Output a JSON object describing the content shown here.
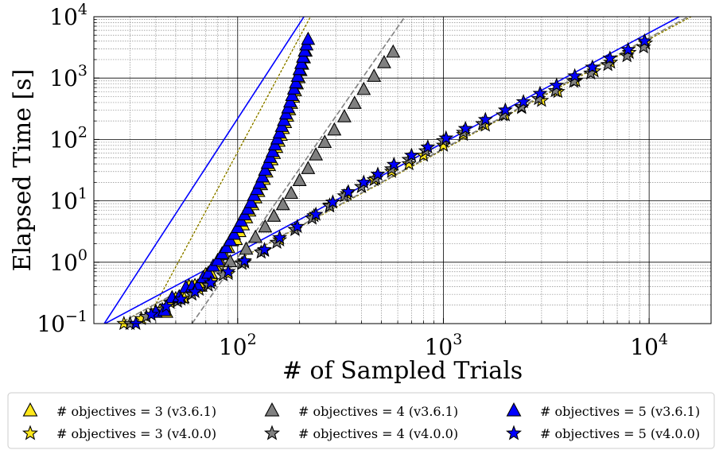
{
  "chart_data": {
    "type": "scatter",
    "xlabel": "# of Sampled Trials",
    "ylabel": "Elapsed Time [s]",
    "x_scale": "log",
    "y_scale": "log",
    "xlim": [
      20,
      20000
    ],
    "ylim": [
      0.1,
      10000
    ],
    "x_ticks": [
      {
        "base": "10",
        "exp": "2",
        "value": 100
      },
      {
        "base": "10",
        "exp": "3",
        "value": 1000
      },
      {
        "base": "10",
        "exp": "4",
        "value": 10000
      }
    ],
    "y_ticks": [
      {
        "base": "10",
        "exp": "−1",
        "value": 0.1
      },
      {
        "base": "10",
        "exp": "0",
        "value": 1
      },
      {
        "base": "10",
        "exp": "1",
        "value": 10
      },
      {
        "base": "10",
        "exp": "2",
        "value": 100
      },
      {
        "base": "10",
        "exp": "3",
        "value": 1000
      },
      {
        "base": "10",
        "exp": "4",
        "value": 10000
      }
    ],
    "grid": true,
    "legend_position": "bottom",
    "series": [
      {
        "name": "# objectives = 3 (v3.6.1)",
        "marker": "triangle",
        "color": "#FFE81A",
        "fit": {
          "x1": 20,
          "y1": 0.0028,
          "x2": 226,
          "y2": 10000,
          "dash": "3 2"
        },
        "points": [
          [
            42,
            0.16
          ],
          [
            45,
            0.15
          ],
          [
            50,
            0.25
          ],
          [
            54,
            0.26
          ],
          [
            58,
            0.4
          ],
          [
            62,
            0.41
          ],
          [
            66,
            0.4
          ],
          [
            70,
            0.62
          ],
          [
            74,
            0.65
          ],
          [
            78,
            0.85
          ],
          [
            82,
            1.0
          ],
          [
            86,
            1.3
          ],
          [
            90,
            1.7
          ],
          [
            94,
            2.2
          ],
          [
            98,
            2.3
          ],
          [
            102,
            3.1
          ],
          [
            106,
            4.0
          ],
          [
            110,
            5.2
          ],
          [
            114,
            6.7
          ],
          [
            118,
            8.5
          ],
          [
            122,
            11
          ],
          [
            126,
            14
          ],
          [
            130,
            18
          ],
          [
            134,
            22
          ],
          [
            138,
            29
          ],
          [
            142,
            37
          ],
          [
            146,
            46
          ],
          [
            150,
            58
          ],
          [
            154,
            73
          ],
          [
            158,
            92
          ],
          [
            162,
            115
          ],
          [
            166,
            148
          ],
          [
            170,
            185
          ],
          [
            174,
            235
          ],
          [
            178,
            300
          ],
          [
            182,
            380
          ],
          [
            186,
            480
          ],
          [
            190,
            610
          ],
          [
            194,
            790
          ],
          [
            198,
            1000
          ],
          [
            202,
            1300
          ],
          [
            206,
            1650
          ],
          [
            210,
            2100
          ],
          [
            214,
            2700
          ]
        ]
      },
      {
        "name": "# objectives = 3 (v4.0.0)",
        "marker": "star",
        "color": "#FFE81A",
        "fit": {
          "x1": 20,
          "y1": 0.06,
          "x2": 16000,
          "y2": 10000,
          "dash": "3 2"
        },
        "points": [
          [
            28,
            0.1
          ],
          [
            34,
            0.12
          ],
          [
            40,
            0.16
          ],
          [
            47,
            0.22
          ],
          [
            55,
            0.26
          ],
          [
            65,
            0.36
          ],
          [
            75,
            0.5
          ],
          [
            90,
            0.65
          ],
          [
            108,
            1.0
          ],
          [
            135,
            1.55
          ],
          [
            160,
            2.3
          ],
          [
            190,
            3.4
          ],
          [
            235,
            5.7
          ],
          [
            280,
            8.5
          ],
          [
            340,
            13
          ],
          [
            400,
            17
          ],
          [
            460,
            22
          ],
          [
            560,
            30
          ],
          [
            680,
            40
          ],
          [
            800,
            55
          ],
          [
            1000,
            80
          ],
          [
            1250,
            120
          ],
          [
            1600,
            170
          ],
          [
            2000,
            250
          ],
          [
            2400,
            330
          ],
          [
            3000,
            430
          ],
          [
            3600,
            600
          ],
          [
            4400,
            900
          ],
          [
            5400,
            1300
          ],
          [
            6500,
            1800
          ],
          [
            8000,
            2600
          ],
          [
            9600,
            3700
          ]
        ]
      },
      {
        "name": "# objectives = 4 (v3.6.1)",
        "marker": "triangle",
        "color": "#808080",
        "fit": {
          "x1": 60,
          "y1": 0.1,
          "x2": 650,
          "y2": 10000,
          "dash": "7 3"
        },
        "points": [
          [
            92,
            1.0
          ],
          [
            110,
            1.6
          ],
          [
            122,
            2.5
          ],
          [
            136,
            3.7
          ],
          [
            150,
            5.5
          ],
          [
            166,
            8.5
          ],
          [
            182,
            13
          ],
          [
            200,
            21
          ],
          [
            220,
            33
          ],
          [
            240,
            55
          ],
          [
            265,
            88
          ],
          [
            295,
            140
          ],
          [
            330,
            230
          ],
          [
            370,
            380
          ],
          [
            410,
            640
          ],
          [
            460,
            1050
          ],
          [
            515,
            1750
          ],
          [
            570,
            2600
          ]
        ]
      },
      {
        "name": "# objectives = 4 (v4.0.0)",
        "marker": "star",
        "color": "#808080",
        "fit": {
          "x1": 20,
          "y1": 0.06,
          "x2": 15500,
          "y2": 10000,
          "dash": "7 3"
        },
        "points": [
          [
            30,
            0.1
          ],
          [
            36,
            0.13
          ],
          [
            43,
            0.17
          ],
          [
            51,
            0.23
          ],
          [
            60,
            0.3
          ],
          [
            72,
            0.42
          ],
          [
            85,
            0.62
          ],
          [
            105,
            0.95
          ],
          [
            130,
            1.45
          ],
          [
            155,
            2.1
          ],
          [
            190,
            3.4
          ],
          [
            230,
            5.2
          ],
          [
            280,
            8.2
          ],
          [
            330,
            12
          ],
          [
            400,
            17
          ],
          [
            470,
            23
          ],
          [
            560,
            33
          ],
          [
            680,
            47
          ],
          [
            820,
            65
          ],
          [
            1000,
            95
          ],
          [
            1250,
            130
          ],
          [
            1550,
            180
          ],
          [
            1950,
            250
          ],
          [
            2400,
            340
          ],
          [
            2900,
            460
          ],
          [
            3500,
            620
          ],
          [
            4300,
            880
          ],
          [
            5200,
            1200
          ],
          [
            6300,
            1650
          ],
          [
            7800,
            2300
          ],
          [
            9400,
            3200
          ]
        ]
      },
      {
        "name": "# objectives = 5 (v3.6.1)",
        "marker": "triangle",
        "color": "#0000FF",
        "fit": {
          "x1": 20,
          "y1": 0.055,
          "x2": 210,
          "y2": 10000,
          "dash": ""
        },
        "points": [
          [
            40,
            0.15
          ],
          [
            44,
            0.16
          ],
          [
            48,
            0.26
          ],
          [
            52,
            0.27
          ],
          [
            56,
            0.38
          ],
          [
            60,
            0.39
          ],
          [
            64,
            0.4
          ],
          [
            68,
            0.55
          ],
          [
            72,
            0.65
          ],
          [
            76,
            0.85
          ],
          [
            80,
            1.05
          ],
          [
            84,
            1.35
          ],
          [
            88,
            1.7
          ],
          [
            92,
            2.2
          ],
          [
            96,
            2.8
          ],
          [
            100,
            3.6
          ],
          [
            104,
            4.6
          ],
          [
            108,
            5.8
          ],
          [
            112,
            7.2
          ],
          [
            116,
            9.2
          ],
          [
            120,
            12
          ],
          [
            124,
            15
          ],
          [
            128,
            19
          ],
          [
            132,
            24
          ],
          [
            136,
            31
          ],
          [
            140,
            40
          ],
          [
            144,
            50
          ],
          [
            148,
            62
          ],
          [
            152,
            80
          ],
          [
            156,
            100
          ],
          [
            160,
            125
          ],
          [
            164,
            160
          ],
          [
            168,
            200
          ],
          [
            172,
            255
          ],
          [
            176,
            320
          ],
          [
            180,
            400
          ],
          [
            184,
            510
          ],
          [
            188,
            650
          ],
          [
            192,
            820
          ],
          [
            196,
            1050
          ],
          [
            200,
            1350
          ],
          [
            204,
            1700
          ],
          [
            208,
            2150
          ],
          [
            212,
            2700
          ],
          [
            216,
            3400
          ],
          [
            220,
            4200
          ]
        ]
      },
      {
        "name": "# objectives = 5 (v4.0.0)",
        "marker": "star",
        "color": "#0000FF",
        "fit": {
          "x1": 20,
          "y1": 0.08,
          "x2": 14000,
          "y2": 10000,
          "dash": ""
        },
        "points": [
          [
            32,
            0.1
          ],
          [
            38,
            0.14
          ],
          [
            45,
            0.19
          ],
          [
            53,
            0.25
          ],
          [
            62,
            0.33
          ],
          [
            74,
            0.46
          ],
          [
            90,
            0.7
          ],
          [
            108,
            1.05
          ],
          [
            135,
            1.6
          ],
          [
            160,
            2.5
          ],
          [
            195,
            3.8
          ],
          [
            240,
            6.0
          ],
          [
            290,
            9.5
          ],
          [
            345,
            14
          ],
          [
            410,
            20
          ],
          [
            480,
            27
          ],
          [
            575,
            39
          ],
          [
            700,
            55
          ],
          [
            840,
            75
          ],
          [
            1030,
            105
          ],
          [
            1280,
            150
          ],
          [
            1600,
            210
          ],
          [
            2000,
            300
          ],
          [
            2450,
            410
          ],
          [
            2950,
            560
          ],
          [
            3550,
            760
          ],
          [
            4350,
            1080
          ],
          [
            5300,
            1500
          ],
          [
            6450,
            2100
          ],
          [
            7900,
            2900
          ],
          [
            9500,
            4000
          ]
        ]
      }
    ]
  }
}
